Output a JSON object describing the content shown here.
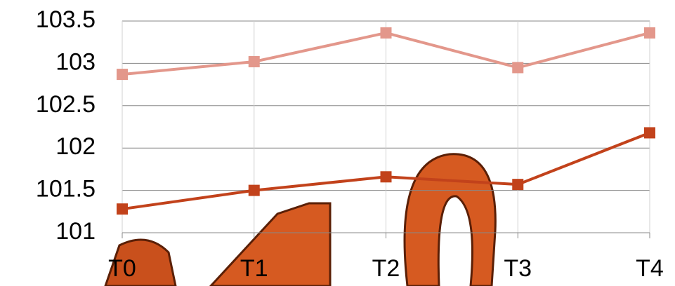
{
  "chart_data": {
    "type": "line",
    "categories": [
      "T0",
      "T1",
      "T2",
      "T3",
      "T4"
    ],
    "series": [
      {
        "color": "#e3978b",
        "values": [
          102.87,
          103.02,
          103.36,
          102.95,
          103.36
        ]
      },
      {
        "color": "#c2421b",
        "values": [
          101.28,
          101.5,
          101.66,
          101.57,
          102.18
        ]
      }
    ],
    "ylim": [
      101,
      103.5
    ],
    "yticks": [
      101,
      101.5,
      102,
      102.5,
      103,
      103.5
    ],
    "grid": true
  }
}
